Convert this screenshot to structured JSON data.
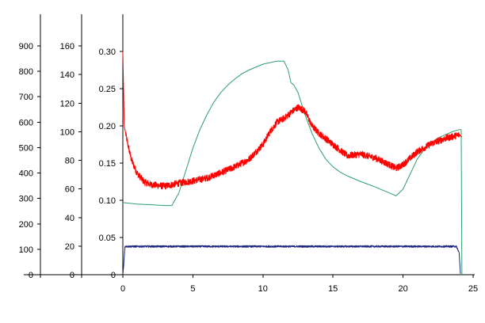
{
  "chart_data": {
    "type": "line",
    "title": "",
    "xlabel": "",
    "x_axis": {
      "range": [
        0,
        25
      ],
      "ticks": [
        "0",
        "5",
        "10",
        "15",
        "20",
        "25"
      ],
      "grid": false
    },
    "y_axes": [
      {
        "id": "y1",
        "range": [
          0,
          900
        ],
        "ticks": [
          "0",
          "100",
          "200",
          "300",
          "400",
          "500",
          "600",
          "700",
          "800",
          "900"
        ]
      },
      {
        "id": "y2",
        "range": [
          0,
          160
        ],
        "ticks": [
          "0",
          "20",
          "40",
          "60",
          "80",
          "100",
          "120",
          "140",
          "160"
        ]
      },
      {
        "id": "y3",
        "range": [
          0,
          0.3
        ],
        "ticks": [
          "0",
          "0.05",
          "0.10",
          "0.15",
          "0.20",
          "0.25",
          "0.30"
        ]
      }
    ],
    "legend": "none",
    "series": [
      {
        "axis": "y3",
        "color": "#2e9e6e",
        "x": [
          0,
          1,
          2,
          3,
          3.5,
          4,
          4.5,
          5,
          5.5,
          6,
          6.5,
          7,
          7.5,
          8,
          8.5,
          9,
          9.5,
          10,
          10.5,
          11,
          11.5,
          11.8,
          12,
          12.2,
          12.5,
          13,
          13.5,
          14,
          14.5,
          15,
          15.5,
          16,
          17,
          18,
          19,
          19.5,
          20,
          20.5,
          21,
          21.5,
          22,
          22.5,
          23,
          23.5,
          24,
          24.15,
          24.2
        ],
        "y": [
          0.097,
          0.095,
          0.094,
          0.093,
          0.093,
          0.11,
          0.14,
          0.17,
          0.195,
          0.215,
          0.232,
          0.245,
          0.255,
          0.263,
          0.27,
          0.275,
          0.279,
          0.283,
          0.285,
          0.287,
          0.287,
          0.275,
          0.258,
          0.255,
          0.245,
          0.215,
          0.19,
          0.17,
          0.155,
          0.145,
          0.138,
          0.133,
          0.125,
          0.118,
          0.11,
          0.106,
          0.115,
          0.135,
          0.155,
          0.168,
          0.177,
          0.184,
          0.188,
          0.192,
          0.195,
          0.195,
          0.0
        ]
      },
      {
        "axis": "y3",
        "color": "#ff0000",
        "noisy": true,
        "x": [
          0,
          0.05,
          0.1,
          0.3,
          0.6,
          1,
          1.5,
          2,
          3,
          4,
          5,
          6,
          7,
          8,
          9,
          10,
          10.5,
          11,
          11.5,
          12,
          12.5,
          13,
          13.5,
          14,
          15,
          16,
          17,
          18,
          19,
          19.5,
          20,
          21,
          22,
          23,
          24,
          24.2
        ],
        "y": [
          0.3,
          0.25,
          0.2,
          0.18,
          0.155,
          0.137,
          0.125,
          0.121,
          0.119,
          0.123,
          0.126,
          0.13,
          0.137,
          0.145,
          0.155,
          0.175,
          0.192,
          0.205,
          0.21,
          0.218,
          0.225,
          0.22,
          0.2,
          0.19,
          0.175,
          0.16,
          0.162,
          0.157,
          0.148,
          0.143,
          0.148,
          0.165,
          0.176,
          0.183,
          0.188,
          0.185
        ]
      },
      {
        "axis": "y3",
        "color": "#1a237e",
        "noisy": true,
        "x": [
          0,
          0.05,
          0.15,
          1,
          5,
          10,
          15,
          20,
          23.8,
          24.0,
          24.1
        ],
        "y": [
          0.0,
          0.01,
          0.038,
          0.038,
          0.038,
          0.038,
          0.038,
          0.038,
          0.038,
          0.03,
          0.0
        ]
      }
    ]
  }
}
